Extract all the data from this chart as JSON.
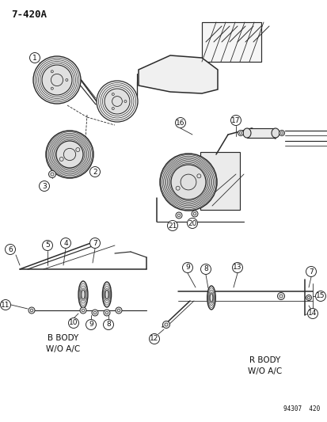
{
  "title": "7-420A",
  "bg_color": "#ffffff",
  "lc": "#2a2a2a",
  "label_color": "#111111",
  "b_body_label": "B BODY\nW/O A/C",
  "r_body_label": "R BODY\nW/O A/C",
  "part_number_label": "94307  420",
  "figsize": [
    4.14,
    5.33
  ],
  "dpi": 100,
  "title_fontsize": 9,
  "label_fontsize": 6.5,
  "body_fontsize": 7.5,
  "pn_fontsize": 5.5
}
